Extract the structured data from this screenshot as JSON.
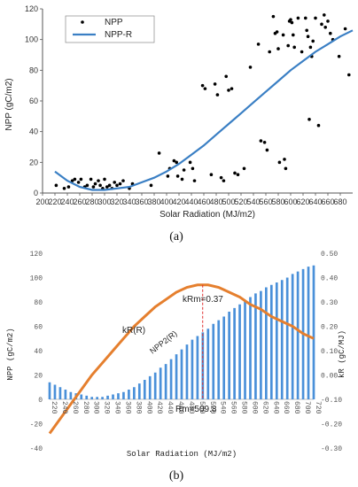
{
  "chart_data": [
    {
      "type": "scatter",
      "panel_label": "(a)",
      "xlabel": "Solar Radiation (MJ/m2)",
      "ylabel": "NPP (gC/m2)",
      "xlim": [
        200,
        700
      ],
      "ylim": [
        0,
        120
      ],
      "x_ticks": [
        200,
        220,
        240,
        260,
        280,
        300,
        320,
        340,
        360,
        380,
        400,
        420,
        440,
        460,
        480,
        500,
        520,
        540,
        560,
        580,
        600,
        620,
        640,
        660,
        680
      ],
      "y_ticks": [
        0,
        20,
        40,
        60,
        80,
        100,
        120
      ],
      "legend_position": "top-left",
      "grid": false,
      "series": [
        {
          "name": "NPP",
          "kind": "points",
          "color": "#000000",
          "points": [
            [
              222,
              5
            ],
            [
              235,
              3
            ],
            [
              242,
              4
            ],
            [
              248,
              8
            ],
            [
              252,
              9
            ],
            [
              258,
              7
            ],
            [
              262,
              9
            ],
            [
              268,
              4
            ],
            [
              272,
              5
            ],
            [
              278,
              9
            ],
            [
              282,
              4
            ],
            [
              285,
              6
            ],
            [
              290,
              8
            ],
            [
              293,
              5
            ],
            [
              297,
              3
            ],
            [
              300,
              9
            ],
            [
              304,
              4
            ],
            [
              308,
              5
            ],
            [
              312,
              3
            ],
            [
              316,
              7
            ],
            [
              320,
              5
            ],
            [
              325,
              6
            ],
            [
              330,
              8
            ],
            [
              340,
              3
            ],
            [
              345,
              6
            ],
            [
              375,
              5
            ],
            [
              388,
              26
            ],
            [
              402,
              11
            ],
            [
              405,
              16
            ],
            [
              412,
              21
            ],
            [
              416,
              20
            ],
            [
              418,
              11
            ],
            [
              425,
              9
            ],
            [
              428,
              15
            ],
            [
              438,
              20
            ],
            [
              442,
              16
            ],
            [
              445,
              8
            ],
            [
              458,
              70
            ],
            [
              462,
              68
            ],
            [
              472,
              12
            ],
            [
              478,
              71
            ],
            [
              482,
              64
            ],
            [
              488,
              10
            ],
            [
              492,
              8
            ],
            [
              496,
              76
            ],
            [
              500,
              67
            ],
            [
              505,
              68
            ],
            [
              510,
              13
            ],
            [
              515,
              12
            ],
            [
              525,
              16
            ],
            [
              535,
              82
            ],
            [
              548,
              97
            ],
            [
              552,
              34
            ],
            [
              558,
              33
            ],
            [
              562,
              28
            ],
            [
              566,
              92
            ],
            [
              572,
              115
            ],
            [
              575,
              104
            ],
            [
              578,
              105
            ],
            [
              580,
              94
            ],
            [
              582,
              20
            ],
            [
              588,
              103
            ],
            [
              590,
              22
            ],
            [
              592,
              16
            ],
            [
              596,
              96
            ],
            [
              598,
              112
            ],
            [
              600,
              113
            ],
            [
              602,
              111
            ],
            [
              604,
              103
            ],
            [
              606,
              95
            ],
            [
              612,
              114
            ],
            [
              618,
              92
            ],
            [
              624,
              114
            ],
            [
              626,
              106
            ],
            [
              628,
              102
            ],
            [
              630,
              48
            ],
            [
              632,
              95
            ],
            [
              634,
              89
            ],
            [
              636,
              99
            ],
            [
              640,
              114
            ],
            [
              645,
              44
            ],
            [
              650,
              110
            ],
            [
              654,
              116
            ],
            [
              656,
              108
            ],
            [
              660,
              112
            ],
            [
              664,
              104
            ],
            [
              668,
              100
            ],
            [
              678,
              89
            ],
            [
              688,
              107
            ],
            [
              694,
              77
            ]
          ]
        },
        {
          "name": "NPP-R",
          "kind": "line",
          "color": "#3a7fc4",
          "points": [
            [
              220,
              14
            ],
            [
              240,
              8
            ],
            [
              260,
              4
            ],
            [
              280,
              2
            ],
            [
              300,
              2
            ],
            [
              320,
              3
            ],
            [
              340,
              4
            ],
            [
              360,
              7
            ],
            [
              380,
              10
            ],
            [
              400,
              14
            ],
            [
              420,
              19
            ],
            [
              440,
              25
            ],
            [
              460,
              31
            ],
            [
              480,
              38
            ],
            [
              500,
              45
            ],
            [
              520,
              52
            ],
            [
              540,
              59
            ],
            [
              560,
              66
            ],
            [
              580,
              73
            ],
            [
              600,
              80
            ],
            [
              620,
              86
            ],
            [
              640,
              92
            ],
            [
              660,
              97
            ],
            [
              680,
              102
            ],
            [
              700,
              106
            ]
          ]
        }
      ]
    },
    {
      "type": "bar",
      "panel_label": "(b)",
      "xlabel": "Solar Radiation (MJ/m2)",
      "ylabel": "NPP (gC/m2)",
      "ylabel_right": "kR (gC/MJ)",
      "xlim": [
        220,
        720
      ],
      "ylim": [
        -40,
        120
      ],
      "ylim_right": [
        -0.3,
        0.5
      ],
      "x_ticks": [
        "220",
        "240",
        "260",
        "280",
        "300",
        "320",
        "340",
        "360",
        "380",
        "400",
        "420",
        "440",
        "460",
        "480",
        "500",
        "520",
        "540",
        "560",
        "580",
        "600",
        "620",
        "640",
        "660",
        "680",
        "700",
        "720"
      ],
      "y_ticks": [
        "120",
        "100",
        "80",
        "60",
        "40",
        "20",
        "0",
        "-20",
        "-40"
      ],
      "y_ticks_right": [
        "0.50",
        "0.40",
        "0.30",
        "0.20",
        "0.10",
        "0.00",
        "-0.10",
        "-0.20",
        "-0.30"
      ],
      "grid": false,
      "annotations": {
        "peak_label": "kRm=0.37",
        "rm_label": "Rm=509.8",
        "kr_curve_label": "kR(R)",
        "npp2_label": "NPP2(R)"
      },
      "peak": {
        "x": 509.8,
        "k": 0.37
      },
      "series": [
        {
          "name": "NPP2(R)",
          "kind": "bars",
          "axis": "left",
          "color": "#4a90d9",
          "x": [
            220,
            230,
            240,
            250,
            260,
            270,
            280,
            290,
            300,
            310,
            320,
            330,
            340,
            350,
            360,
            370,
            380,
            390,
            400,
            410,
            420,
            430,
            440,
            450,
            460,
            470,
            480,
            490,
            500,
            510,
            520,
            530,
            540,
            550,
            560,
            570,
            580,
            590,
            600,
            610,
            620,
            630,
            640,
            650,
            660,
            670,
            680,
            690,
            700,
            710,
            720
          ],
          "values": [
            14,
            12,
            10,
            8,
            6,
            5,
            4,
            3,
            2,
            2,
            2,
            3,
            4,
            5,
            6,
            8,
            10,
            13,
            16,
            19,
            22,
            26,
            29,
            33,
            37,
            41,
            45,
            49,
            52,
            55,
            58,
            62,
            65,
            68,
            72,
            75,
            78,
            81,
            84,
            87,
            89,
            92,
            94,
            96,
            98,
            100,
            103,
            105,
            107,
            109,
            110
          ]
        },
        {
          "name": "kR(R)",
          "kind": "line",
          "axis": "right",
          "color": "#e57f2e",
          "x": [
            220,
            240,
            260,
            280,
            300,
            320,
            340,
            360,
            380,
            400,
            420,
            440,
            460,
            480,
            500,
            510,
            520,
            540,
            560,
            580,
            600,
            620,
            640,
            660,
            680,
            700,
            720
          ],
          "values": [
            -0.24,
            -0.18,
            -0.12,
            -0.06,
            0.0,
            0.05,
            0.1,
            0.15,
            0.2,
            0.24,
            0.28,
            0.31,
            0.34,
            0.36,
            0.37,
            0.37,
            0.37,
            0.36,
            0.34,
            0.32,
            0.29,
            0.27,
            0.24,
            0.22,
            0.2,
            0.17,
            0.15
          ]
        }
      ]
    }
  ]
}
